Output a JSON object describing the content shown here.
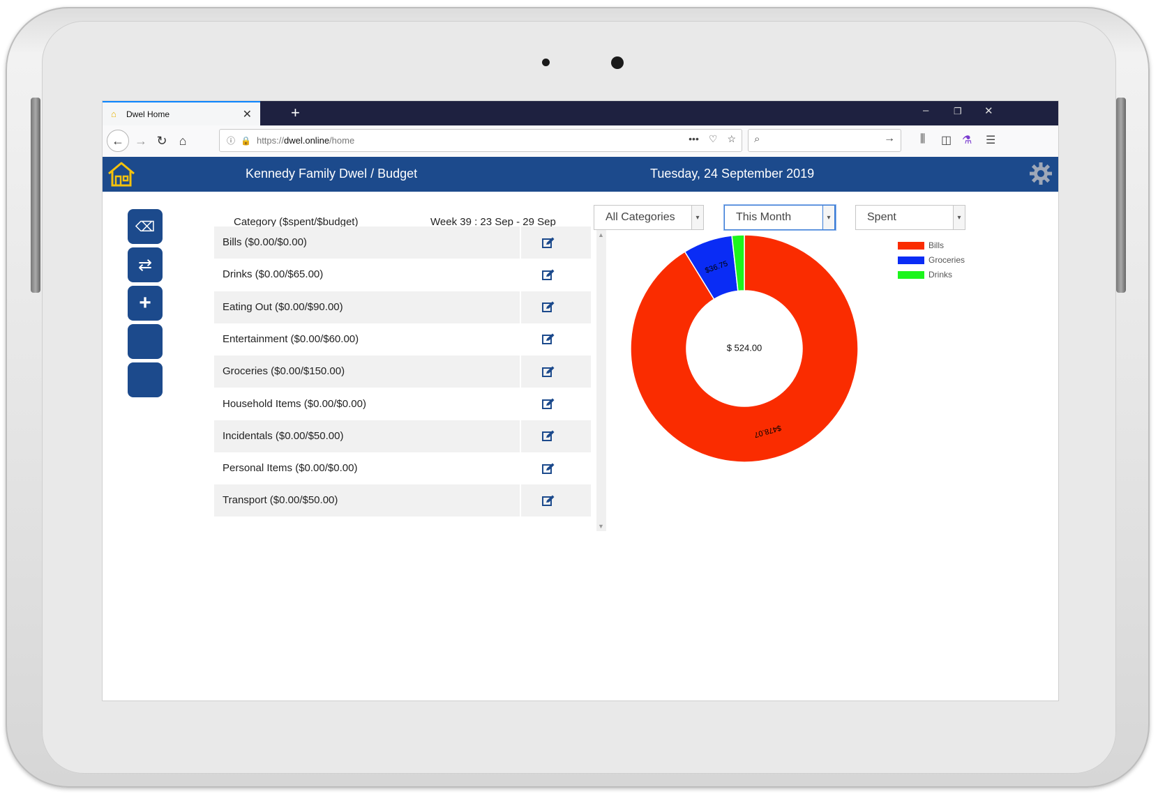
{
  "browser": {
    "tab_title": "Dwel Home",
    "new_tab": "+",
    "url_protocol": "https://",
    "url_host": "dwel.online",
    "url_path": "/home"
  },
  "app": {
    "title": "Kennedy Family Dwel / Budget",
    "date": "Tuesday, 24 September 2019",
    "colors": {
      "header": "#1c4a8c",
      "logo": "#f4c20d"
    }
  },
  "actions": [
    {
      "icon": "backspace-icon",
      "label": "⌫"
    },
    {
      "icon": "repeat-icon",
      "label": "⇄"
    },
    {
      "icon": "plus-icon",
      "label": "+"
    },
    {
      "icon": "",
      "label": ""
    },
    {
      "icon": "",
      "label": ""
    }
  ],
  "table": {
    "header_category": "Category ($spent/$budget)",
    "header_week": "Week 39 : 23 Sep - 29 Sep",
    "rows": [
      "Bills ($0.00/$0.00)",
      "Drinks ($0.00/$65.00)",
      "Eating Out ($0.00/$90.00)",
      "Entertainment ($0.00/$60.00)",
      "Groceries ($0.00/$150.00)",
      "Household Items ($0.00/$0.00)",
      "Incidentals ($0.00/$50.00)",
      "Personal Items ($0.00/$0.00)",
      "Transport ($0.00/$50.00)"
    ]
  },
  "filters": {
    "category": "All Categories",
    "period": "This Month",
    "measure": "Spent"
  },
  "chart_data": {
    "type": "pie",
    "variant": "donut",
    "center_label": "$ 524.00",
    "categories": [
      "Bills",
      "Groceries",
      "Drinks"
    ],
    "values": [
      478.07,
      36.75,
      9.18
    ],
    "slice_labels": [
      "$478.07",
      "$36.75",
      ""
    ],
    "colors": [
      "#fa2c00",
      "#0a2cf5",
      "#1cf51c"
    ],
    "legend": "top-right"
  }
}
